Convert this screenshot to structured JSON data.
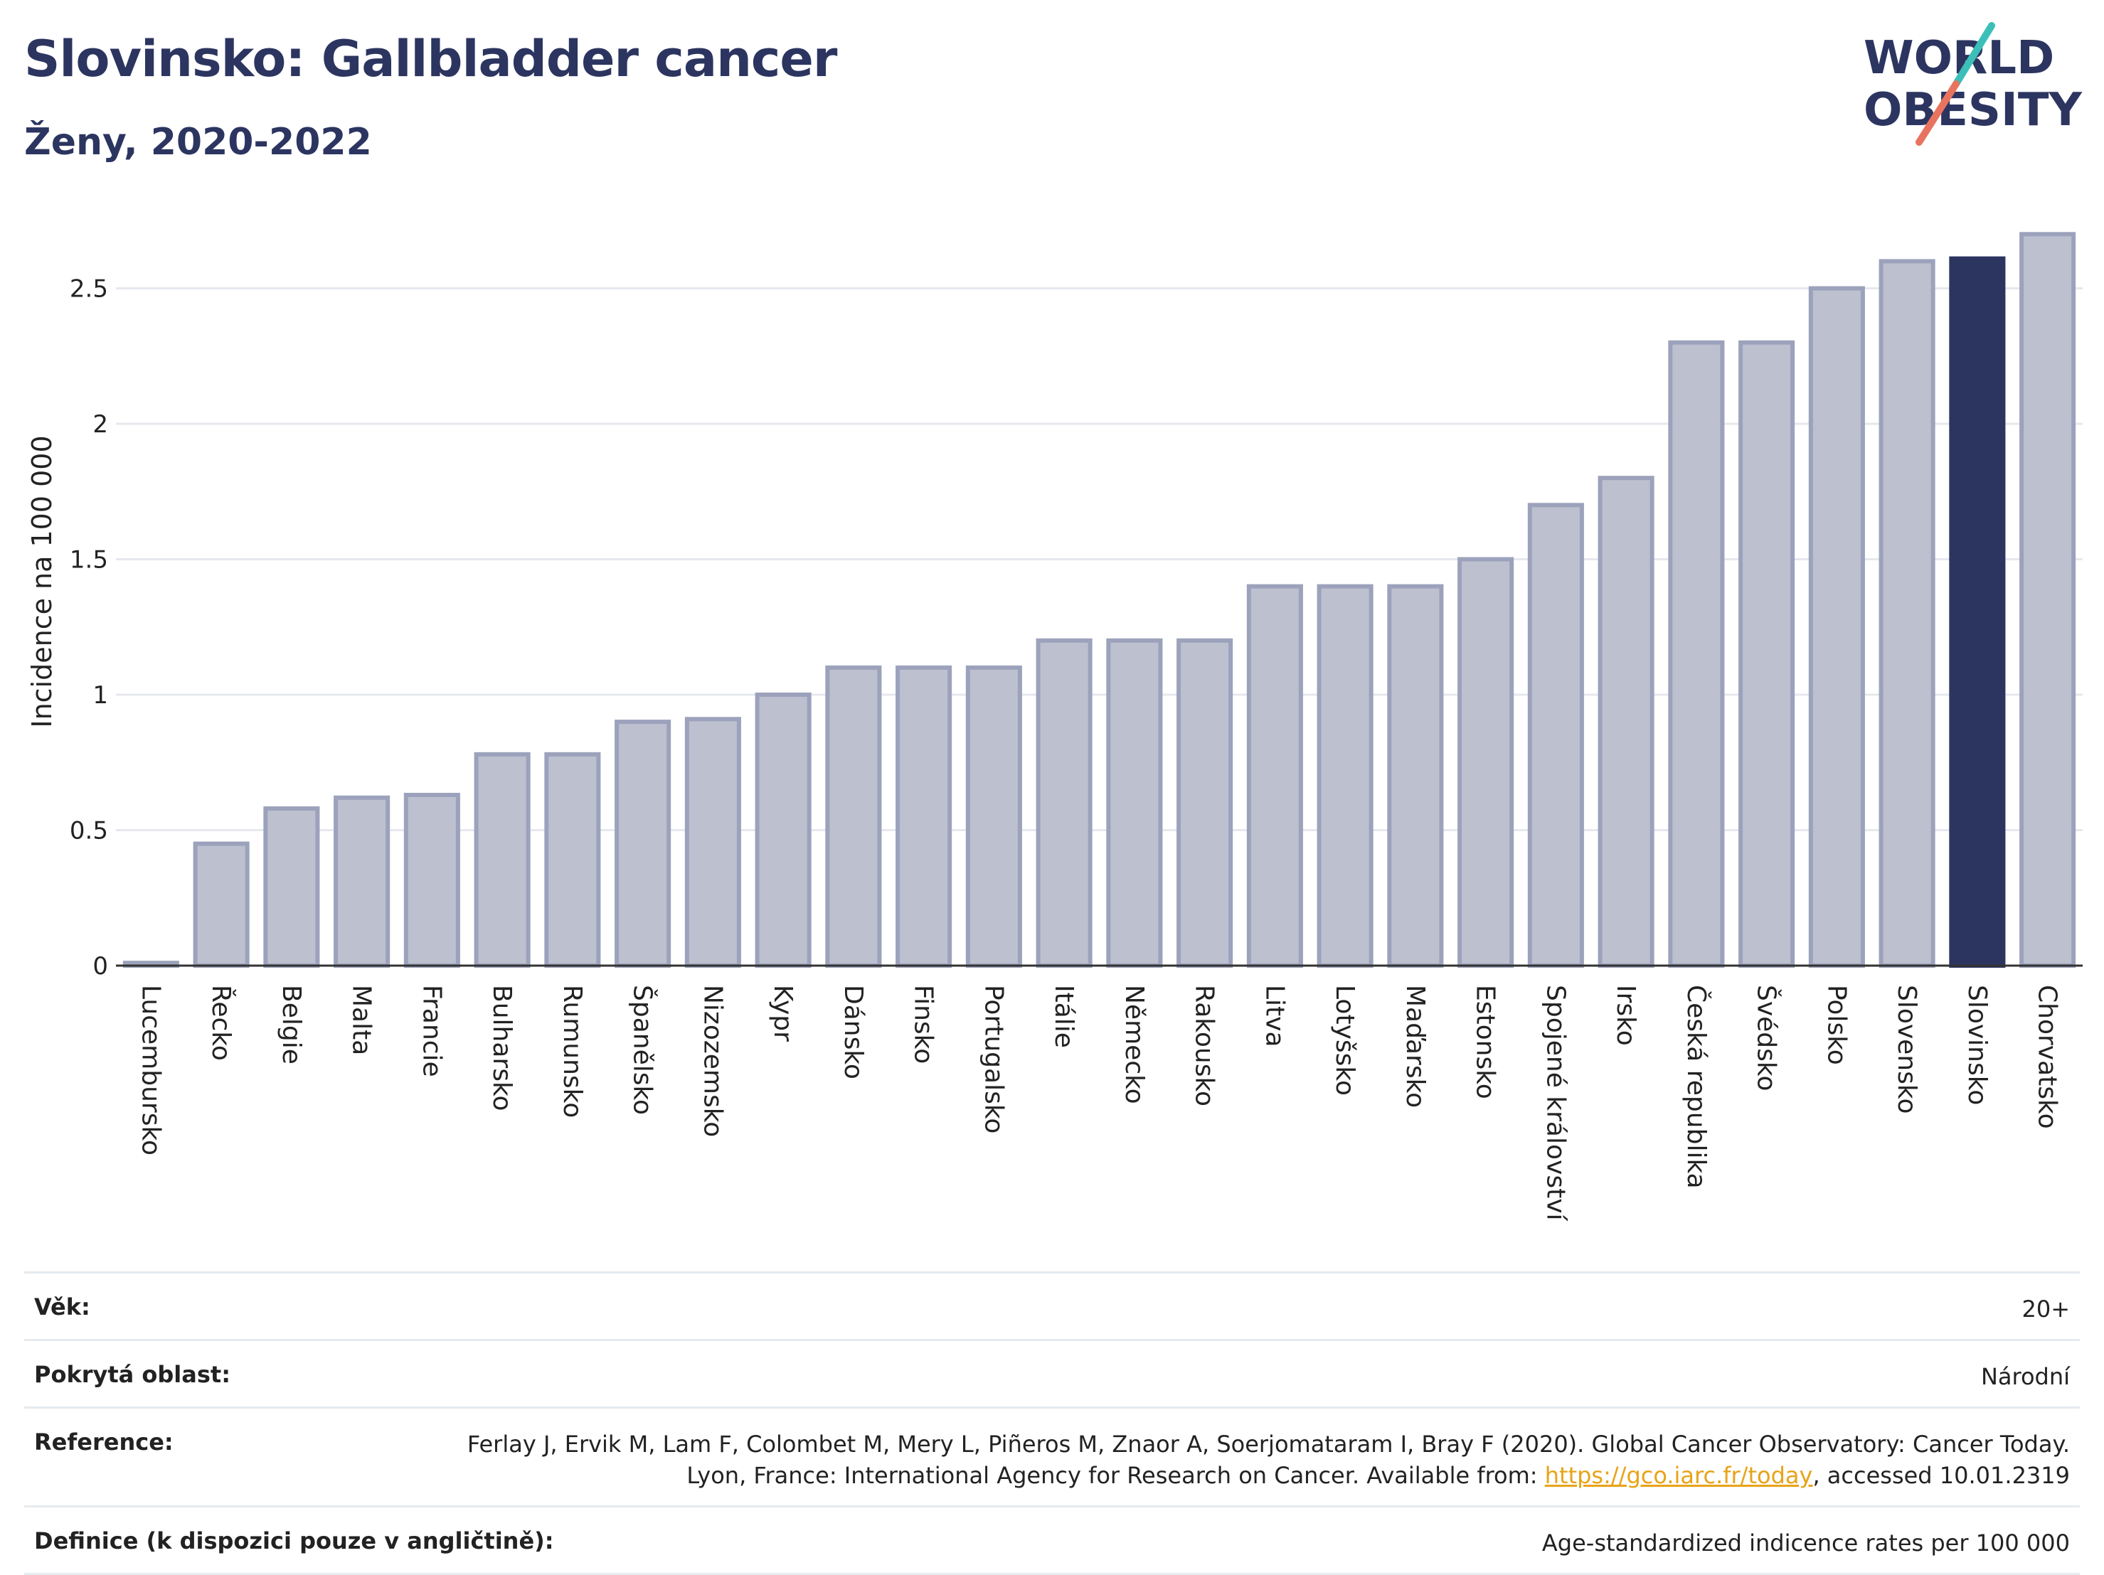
{
  "header": {
    "title": "Slovinsko: Gallbladder cancer",
    "subtitle": "Ženy, 2020-2022",
    "logo_text_line1": "WORLD",
    "logo_text_line2": "OBESITY"
  },
  "colors": {
    "bar": "#bcc0cf",
    "bar_outline": "#9ca2bb",
    "highlight": "#2c3560",
    "title": "#2c3560",
    "link": "#e8a317",
    "logo_teal": "#3bbfb8",
    "logo_coral": "#e8745f"
  },
  "chart_data": {
    "type": "bar",
    "ylabel": "Incidence na 100 000",
    "xlabel": "",
    "ylim": [
      0,
      2.72
    ],
    "yticks": [
      0,
      0.5,
      1,
      1.5,
      2,
      2.5
    ],
    "ytick_labels": [
      "0",
      "0.5",
      "1",
      "1.5",
      "2",
      "2.5"
    ],
    "grid": true,
    "highlight_category": "Slovinsko",
    "categories": [
      "Lucembursko",
      "Řecko",
      "Belgie",
      "Malta",
      "Francie",
      "Bulharsko",
      "Rumunsko",
      "Španělsko",
      "Nizozemsko",
      "Kypr",
      "Dánsko",
      "Finsko",
      "Portugalsko",
      "Itálie",
      "Německo",
      "Rakousko",
      "Litva",
      "Lotyšsko",
      "Maďarsko",
      "Estonsko",
      "Spojené království",
      "Irsko",
      "Česká republika",
      "Švédsko",
      "Polsko",
      "Slovensko",
      "Slovinsko",
      "Chorvatsko"
    ],
    "values": [
      0.01,
      0.45,
      0.58,
      0.62,
      0.63,
      0.78,
      0.78,
      0.9,
      0.91,
      1.0,
      1.1,
      1.1,
      1.1,
      1.2,
      1.2,
      1.2,
      1.4,
      1.4,
      1.4,
      1.5,
      1.7,
      1.8,
      2.3,
      2.3,
      2.5,
      2.6,
      2.61,
      2.7
    ]
  },
  "details": [
    {
      "label": "Věk:",
      "value": "20+"
    },
    {
      "label": "Pokrytá oblast:",
      "value": "Národní"
    },
    {
      "label": "Reference:",
      "value_pre": "Ferlay J, Ervik M, Lam F, Colombet M, Mery L, Piñeros M, Znaor A, Soerjomataram I, Bray F (2020). Global Cancer Observatory: Cancer Today. Lyon, France: International Agency for Research on Cancer. Available from: ",
      "link": "https://gco.iarc.fr/today",
      "value_post": ", accessed 10.01.2319"
    },
    {
      "label": "Definice (k dispozici pouze v angličtině):",
      "value": "Age-standardized indicence rates per 100 000"
    }
  ]
}
